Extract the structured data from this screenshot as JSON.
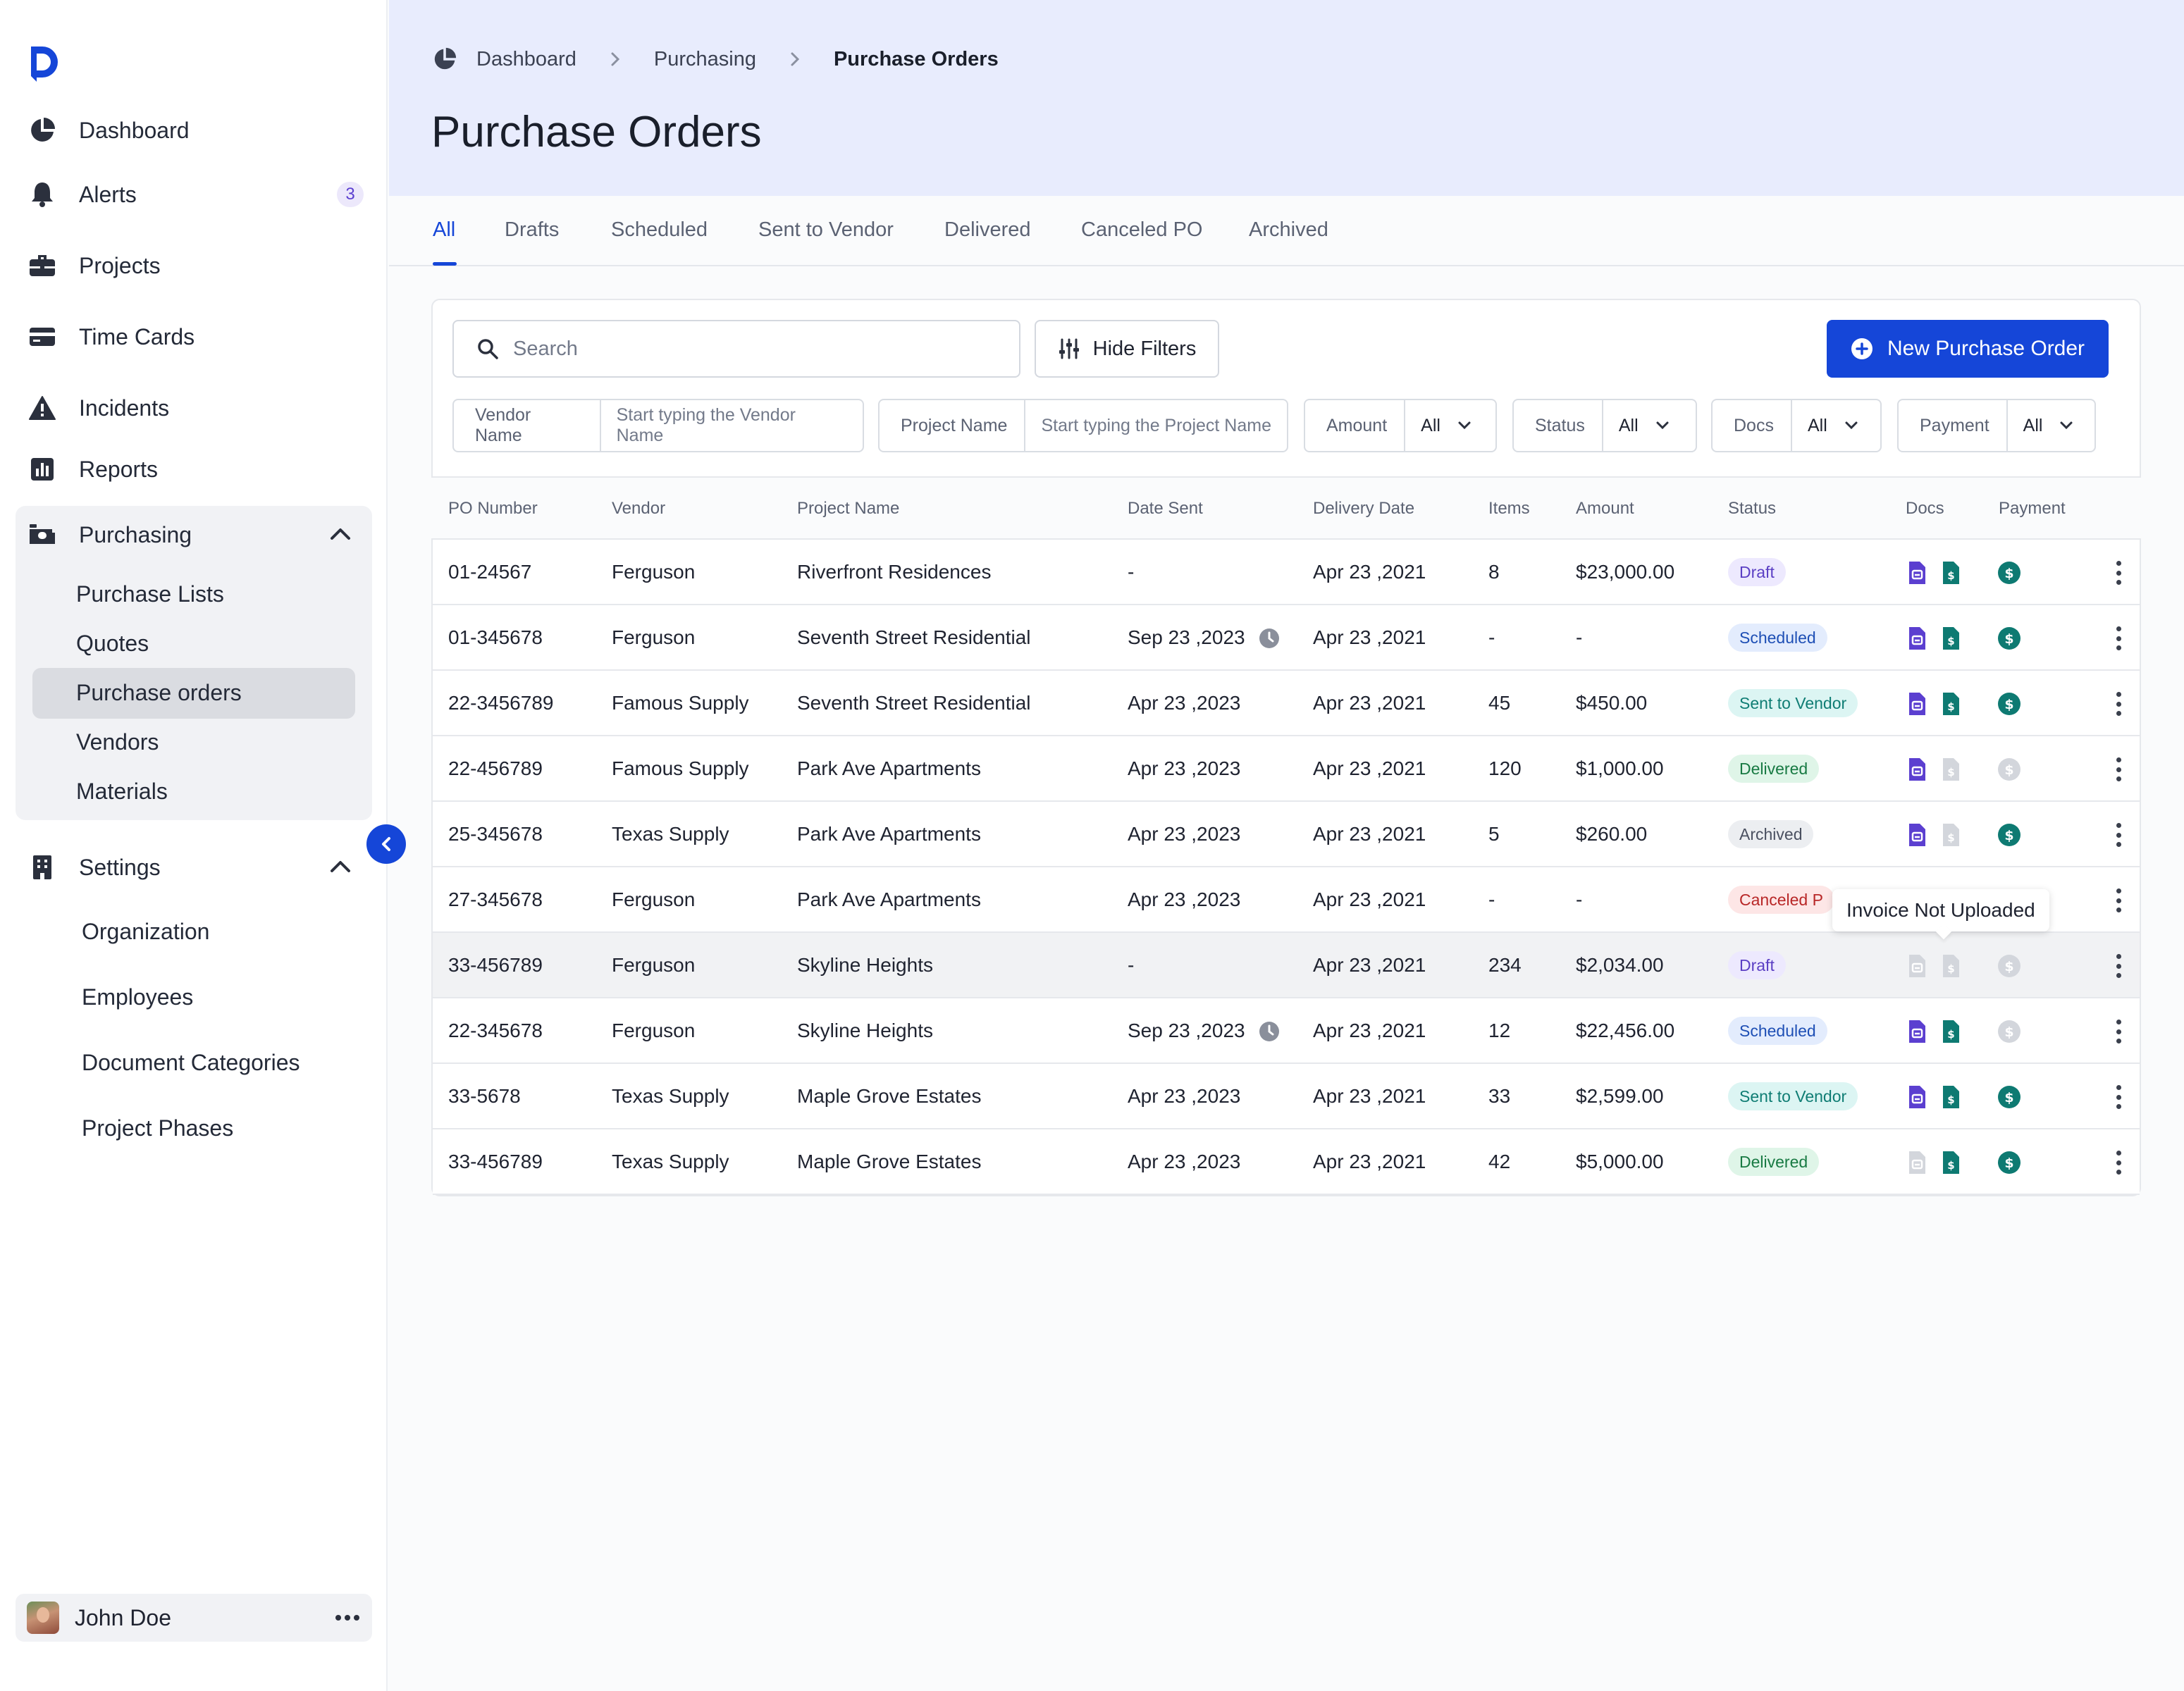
{
  "sidebar": {
    "nav": [
      {
        "label": "Dashboard",
        "icon": "pie-chart-icon"
      },
      {
        "label": "Alerts",
        "icon": "bell-icon",
        "badge": "3"
      },
      {
        "label": "Projects",
        "icon": "briefcase-icon"
      },
      {
        "label": "Time Cards",
        "icon": "credit-card-icon"
      },
      {
        "label": "Incidents",
        "icon": "warning-icon"
      },
      {
        "label": "Reports",
        "icon": "bar-chart-icon"
      }
    ],
    "purchasing": {
      "label": "Purchasing",
      "icon": "cash-register-icon",
      "items": [
        "Purchase Lists",
        "Quotes",
        "Purchase orders",
        "Vendors",
        "Materials"
      ],
      "active": "Purchase orders"
    },
    "settings": {
      "label": "Settings",
      "icon": "building-icon",
      "items": [
        "Organization",
        "Employees",
        "Document Categories",
        "Project Phases"
      ]
    },
    "user": {
      "name": "John Doe"
    }
  },
  "header": {
    "breadcrumb": [
      "Dashboard",
      "Purchasing",
      "Purchase Orders"
    ],
    "title": "Purchase Orders"
  },
  "tabs": [
    "All",
    "Drafts",
    "Scheduled",
    "Sent to Vendor",
    "Delivered",
    "Canceled PO",
    "Archived"
  ],
  "active_tab": "All",
  "toolbar": {
    "search_placeholder": "Search",
    "hide_filters": "Hide Filters",
    "new_po": "New Purchase Order"
  },
  "filters": {
    "vendor": {
      "label": "Vendor Name",
      "placeholder": "Start typing the Vendor Name"
    },
    "project": {
      "label": "Project Name",
      "placeholder": "Start typing the Project Name"
    },
    "amount": {
      "label": "Amount",
      "value": "All"
    },
    "status": {
      "label": "Status",
      "value": "All"
    },
    "docs": {
      "label": "Docs",
      "value": "All"
    },
    "payment": {
      "label": "Payment",
      "value": "All"
    }
  },
  "table": {
    "columns": [
      "PO Number",
      "Vendor",
      "Project Name",
      "Date Sent",
      "Delivery Date",
      "Items",
      "Amount",
      "Status",
      "Docs",
      "Payment"
    ],
    "rows": [
      {
        "po": "01-24567",
        "vendor": "Ferguson",
        "project": "Riverfront Residences",
        "date_sent": "-",
        "clock": false,
        "delivery": "Apr 23 ,2021",
        "items": "8",
        "amount": "$23,000.00",
        "status": "Draft",
        "status_key": "draft",
        "doc1": true,
        "doc2": true,
        "pay": true
      },
      {
        "po": "01-345678",
        "vendor": "Ferguson",
        "project": "Seventh Street Residential",
        "date_sent": "Sep 23 ,2023",
        "clock": true,
        "delivery": "Apr 23 ,2021",
        "items": "-",
        "amount": "-",
        "status": "Scheduled",
        "status_key": "scheduled",
        "doc1": true,
        "doc2": true,
        "pay": true
      },
      {
        "po": "22-3456789",
        "vendor": "Famous Supply",
        "project": "Seventh Street Residential",
        "date_sent": "Apr 23 ,2023",
        "clock": false,
        "delivery": "Apr 23 ,2021",
        "items": "45",
        "amount": "$450.00",
        "status": "Sent to Vendor",
        "status_key": "sent",
        "doc1": true,
        "doc2": true,
        "pay": true
      },
      {
        "po": "22-456789",
        "vendor": "Famous Supply",
        "project": "Park Ave Apartments",
        "date_sent": "Apr 23 ,2023",
        "clock": false,
        "delivery": "Apr 23 ,2021",
        "items": "120",
        "amount": "$1,000.00",
        "status": "Delivered",
        "status_key": "delivered",
        "doc1": true,
        "doc2": false,
        "pay": false
      },
      {
        "po": "25-345678",
        "vendor": "Texas Supply",
        "project": "Park Ave Apartments",
        "date_sent": "Apr 23 ,2023",
        "clock": false,
        "delivery": "Apr 23 ,2021",
        "items": "5",
        "amount": "$260.00",
        "status": "Archived",
        "status_key": "archived",
        "doc1": true,
        "doc2": false,
        "pay": true
      },
      {
        "po": "27-345678",
        "vendor": "Ferguson",
        "project": "Park Ave Apartments",
        "date_sent": "Apr 23 ,2023",
        "clock": false,
        "delivery": "Apr 23 ,2021",
        "items": "-",
        "amount": "-",
        "status": "Canceled P",
        "status_key": "canceled",
        "doc1": null,
        "doc2": null,
        "pay": null
      },
      {
        "po": "33-456789",
        "vendor": "Ferguson",
        "project": "Skyline Heights",
        "date_sent": "-",
        "clock": false,
        "delivery": "Apr 23 ,2021",
        "items": "234",
        "amount": "$2,034.00",
        "status": "Draft",
        "status_key": "draft",
        "doc1": false,
        "doc2": false,
        "pay": false,
        "hover": true
      },
      {
        "po": "22-345678",
        "vendor": "Ferguson",
        "project": "Skyline Heights",
        "date_sent": "Sep 23 ,2023",
        "clock": true,
        "delivery": "Apr 23 ,2021",
        "items": "12",
        "amount": "$22,456.00",
        "status": "Scheduled",
        "status_key": "scheduled",
        "doc1": true,
        "doc2": true,
        "pay": false
      },
      {
        "po": "33-5678",
        "vendor": "Texas Supply",
        "project": "Maple Grove Estates",
        "date_sent": "Apr 23 ,2023",
        "clock": false,
        "delivery": "Apr 23 ,2021",
        "items": "33",
        "amount": "$2,599.00",
        "status": "Sent to Vendor",
        "status_key": "sent",
        "doc1": true,
        "doc2": true,
        "pay": true
      },
      {
        "po": "33-456789",
        "vendor": "Texas Supply",
        "project": "Maple Grove Estates",
        "date_sent": "Apr 23 ,2023",
        "clock": false,
        "delivery": "Apr 23 ,2021",
        "items": "42",
        "amount": "$5,000.00",
        "status": "Delivered",
        "status_key": "delivered",
        "doc1": false,
        "doc2": true,
        "pay": true
      }
    ]
  },
  "tooltip": "Invoice Not Uploaded",
  "colors": {
    "accent": "#1546d8",
    "doc_purple": "#5b3fd0",
    "doc_teal": "#0e7a72",
    "pay_teal": "#0e7a72",
    "disabled": "#d3d6dc"
  }
}
